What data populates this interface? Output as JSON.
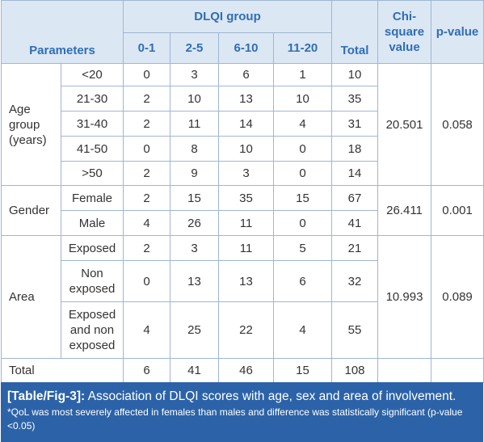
{
  "table": {
    "header": {
      "parameters": "Parameters",
      "dlqi_group": "DLQI group",
      "groups": [
        "0-1",
        "2-5",
        "6-10",
        "11-20"
      ],
      "total": "Total",
      "chi": "Chi-square value",
      "p": "p-value"
    },
    "sections": [
      {
        "label": "Age group (years)",
        "chi": 20.501,
        "p": 0.058,
        "rows": [
          {
            "sub": "<20",
            "values": [
              0,
              3,
              6,
              1,
              10
            ]
          },
          {
            "sub": "21-30",
            "values": [
              2,
              10,
              13,
              10,
              35
            ]
          },
          {
            "sub": "31-40",
            "values": [
              2,
              11,
              14,
              4,
              31
            ]
          },
          {
            "sub": "41-50",
            "values": [
              0,
              8,
              10,
              0,
              18
            ]
          },
          {
            "sub": ">50",
            "values": [
              2,
              9,
              3,
              0,
              14
            ]
          }
        ]
      },
      {
        "label": "Gender",
        "chi": 26.411,
        "p": 0.001,
        "rows": [
          {
            "sub": "Female",
            "values": [
              2,
              15,
              35,
              15,
              67
            ]
          },
          {
            "sub": "Male",
            "values": [
              4,
              26,
              11,
              0,
              41
            ]
          }
        ]
      },
      {
        "label": "Area",
        "chi": 10.993,
        "p": 0.089,
        "rows": [
          {
            "sub": "Exposed",
            "values": [
              2,
              3,
              11,
              5,
              21
            ]
          },
          {
            "sub": "Non exposed",
            "values": [
              0,
              13,
              13,
              6,
              32
            ]
          },
          {
            "sub": "Exposed and non exposed",
            "values": [
              4,
              25,
              22,
              4,
              55
            ]
          }
        ]
      }
    ],
    "total_row": {
      "label": "Total",
      "values": [
        6,
        41,
        46,
        15,
        108
      ]
    }
  },
  "caption": {
    "label": "[Table/Fig-3]:",
    "text": "Association of DLQI scores with age, sex and area of involvement.",
    "note": "*QoL was most severely affected in females than males and difference was statistically significant (p-value <0.05)"
  }
}
